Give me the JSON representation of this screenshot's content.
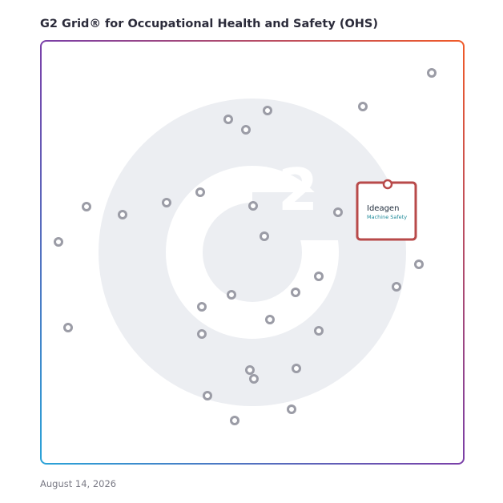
{
  "header": {
    "title": "G2 Grid® for Occupational Health and Safety (OHS)"
  },
  "highlight": {
    "brand": "Ideagen",
    "product": "Machine Safety"
  },
  "footer": {
    "date": "August 14, 2026"
  }
}
